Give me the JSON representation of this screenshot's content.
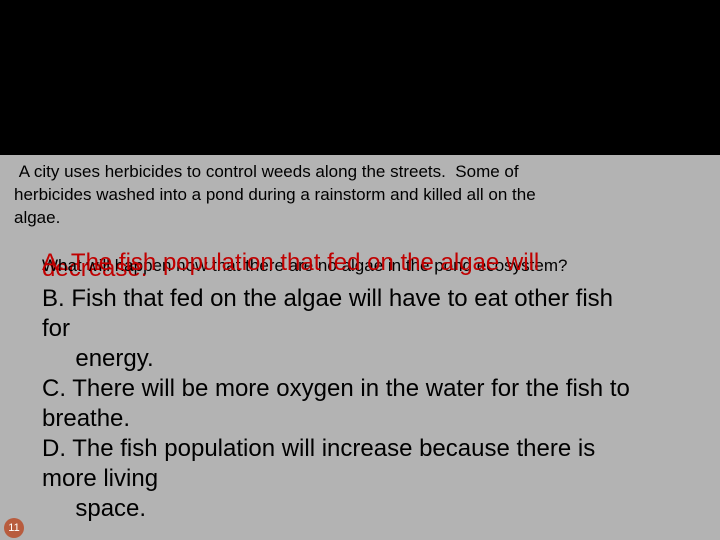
{
  "slide": {
    "question_line1": " A city uses herbicides to control weeds along the streets.  Some of",
    "question_line2": "herbicides washed into a pond during a rainstorm and killed all on the",
    "question_line3": "algae.",
    "question_line4": "What will happen now that there are no algae in the pond ecosystem?",
    "answer_a_line1": "A. The fish population that fed on the algae will",
    "answer_a_line2": "decrease.",
    "answer_b_line1": "B. Fish that fed on the algae will have to eat other fish",
    "answer_b_line2": "for",
    "answer_b_line3": "     energy.",
    "answer_c_line1": "C. There will be more oxygen in the water for the fish to",
    "answer_c_line2": "breathe.",
    "answer_d_line1": "D. The fish population will increase because there is",
    "answer_d_line2": "more living",
    "answer_d_line3": "     space.",
    "page_number": "11"
  },
  "colors": {
    "background": "#000000",
    "band_bg": "#b3b3b3",
    "text": "#000000",
    "highlight": "#c00000",
    "page_circle": "#b85c3e",
    "page_text": "#ffffff"
  }
}
